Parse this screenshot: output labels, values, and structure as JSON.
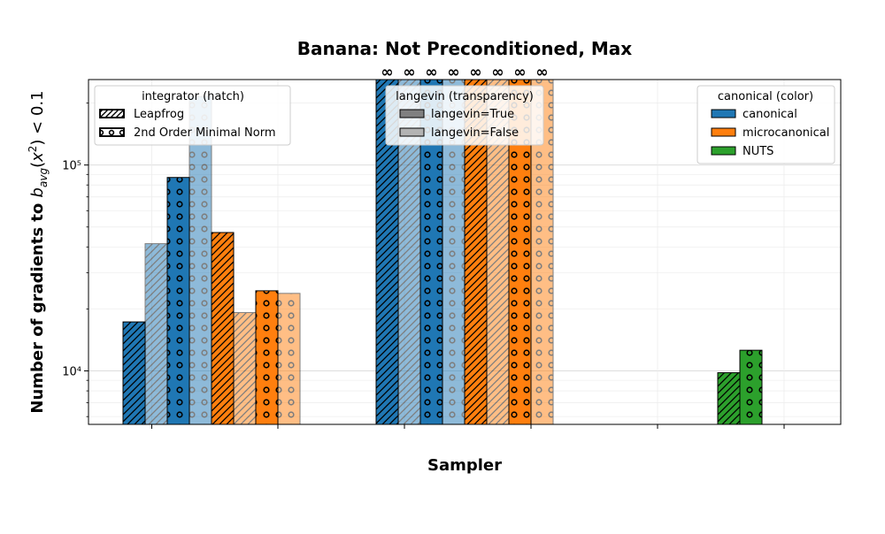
{
  "chart_data": {
    "type": "bar",
    "title": "Banana: Not Preconditioned, Max",
    "xlabel": "Sampler",
    "ylabel": "Number of gradients to b_avg(x²) < 0.1",
    "yscale": "log",
    "ylim": [
      5500,
      260000
    ],
    "yticks": [
      {
        "value": 10000,
        "label": "10⁴"
      },
      {
        "value": 100000,
        "label": "10⁵"
      }
    ],
    "grid": true,
    "infinity_symbol": "∞",
    "colors": {
      "canonical": "#1f77b4",
      "microcanonical": "#ff7f0e",
      "NUTS": "#2ca02c"
    },
    "bars": [
      {
        "group": 0,
        "color": "canonical",
        "integrator": "Leapfrog",
        "langevin": true,
        "value": 17300
      },
      {
        "group": 0,
        "color": "canonical",
        "integrator": "Leapfrog",
        "langevin": false,
        "value": 41500
      },
      {
        "group": 0,
        "color": "canonical",
        "integrator": "2nd Order Minimal Norm",
        "langevin": true,
        "value": 87000
      },
      {
        "group": 0,
        "color": "canonical",
        "integrator": "2nd Order Minimal Norm",
        "langevin": false,
        "value": 215000
      },
      {
        "group": 0,
        "color": "microcanonical",
        "integrator": "Leapfrog",
        "langevin": true,
        "value": 47000
      },
      {
        "group": 0,
        "color": "microcanonical",
        "integrator": "Leapfrog",
        "langevin": false,
        "value": 19200
      },
      {
        "group": 0,
        "color": "microcanonical",
        "integrator": "2nd Order Minimal Norm",
        "langevin": true,
        "value": 24500
      },
      {
        "group": 0,
        "color": "microcanonical",
        "integrator": "2nd Order Minimal Norm",
        "langevin": false,
        "value": 23800
      },
      {
        "group": 1,
        "color": "canonical",
        "integrator": "Leapfrog",
        "langevin": true,
        "value": "inf"
      },
      {
        "group": 1,
        "color": "canonical",
        "integrator": "Leapfrog",
        "langevin": false,
        "value": "inf"
      },
      {
        "group": 1,
        "color": "canonical",
        "integrator": "2nd Order Minimal Norm",
        "langevin": true,
        "value": "inf"
      },
      {
        "group": 1,
        "color": "canonical",
        "integrator": "2nd Order Minimal Norm",
        "langevin": false,
        "value": "inf"
      },
      {
        "group": 1,
        "color": "microcanonical",
        "integrator": "Leapfrog",
        "langevin": true,
        "value": "inf"
      },
      {
        "group": 1,
        "color": "microcanonical",
        "integrator": "Leapfrog",
        "langevin": false,
        "value": "inf"
      },
      {
        "group": 1,
        "color": "microcanonical",
        "integrator": "2nd Order Minimal Norm",
        "langevin": true,
        "value": "inf"
      },
      {
        "group": 1,
        "color": "microcanonical",
        "integrator": "2nd Order Minimal Norm",
        "langevin": false,
        "value": "inf"
      },
      {
        "group": 2,
        "color": "NUTS",
        "integrator": "Leapfrog",
        "langevin": null,
        "value": 9800
      },
      {
        "group": 2,
        "color": "NUTS",
        "integrator": "2nd Order Minimal Norm",
        "langevin": null,
        "value": 12600
      }
    ],
    "legends": [
      {
        "title": "integrator (hatch)",
        "position": "upper-left",
        "entries": [
          {
            "label": "Leapfrog",
            "hatch": "diag"
          },
          {
            "label": "2nd Order Minimal Norm",
            "hatch": "circle"
          }
        ]
      },
      {
        "title": "langevin (transparency)",
        "position": "upper-center",
        "entries": [
          {
            "label": "langevin=True",
            "fill": "#808080"
          },
          {
            "label": "langevin=False",
            "fill": "#b3b3b3"
          }
        ]
      },
      {
        "title": "canonical (color)",
        "position": "upper-right",
        "entries": [
          {
            "label": "canonical",
            "fill": "#1f77b4"
          },
          {
            "label": "microcanonical",
            "fill": "#ff7f0e"
          },
          {
            "label": "NUTS",
            "fill": "#2ca02c"
          }
        ]
      }
    ]
  }
}
